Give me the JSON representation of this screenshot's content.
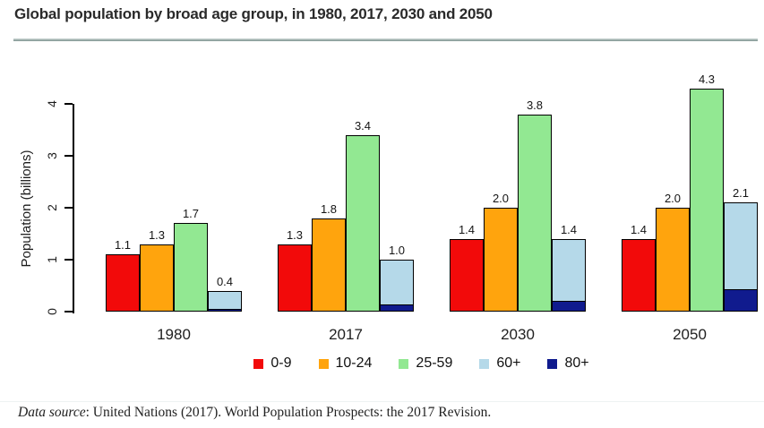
{
  "header": {
    "title": "Global population by broad age group, in 1980, 2017, 2030 and 2050"
  },
  "chart_data": {
    "type": "bar",
    "title": "Global population by broad age group, in 1980, 2017, 2030 and 2050",
    "xlabel": "",
    "ylabel": "Population (billions)",
    "ylim": [
      0,
      4
    ],
    "yticks": [
      "0",
      "1",
      "2",
      "3",
      "4"
    ],
    "grid": false,
    "legend_position": "bottom",
    "bar_outline": "#000000",
    "categories": [
      "1980",
      "2017",
      "2030",
      "2050"
    ],
    "series": [
      {
        "name": "0-9",
        "color": "#f20a0a",
        "values": [
          1.1,
          1.3,
          1.4,
          1.4
        ],
        "labels": [
          "1.1",
          "1.3",
          "1.4",
          "1.4"
        ]
      },
      {
        "name": "10-24",
        "color": "#ffa40d",
        "values": [
          1.3,
          1.8,
          2.0,
          2.0
        ],
        "labels": [
          "1.3",
          "1.8",
          "2.0",
          "2.0"
        ]
      },
      {
        "name": "25-59",
        "color": "#92e892",
        "values": [
          1.7,
          3.4,
          3.8,
          4.3
        ],
        "labels": [
          "1.7",
          "3.4",
          "3.8",
          "4.3"
        ]
      },
      {
        "name": "60+",
        "color": "#b5d9e9",
        "values": [
          0.4,
          1.0,
          1.4,
          2.1
        ],
        "labels": [
          "0.4",
          "1.0",
          "1.4",
          "2.1"
        ]
      },
      {
        "name": "80+",
        "color": "#101b8e",
        "values": [
          0.05,
          0.14,
          0.2,
          0.43
        ],
        "labels": null,
        "render": "inset-bottom-of-60plus",
        "estimated": true
      }
    ]
  },
  "footer": {
    "source_label": "Data source",
    "source_text": ": United Nations (2017). World Population Prospects: the 2017 Revision."
  }
}
